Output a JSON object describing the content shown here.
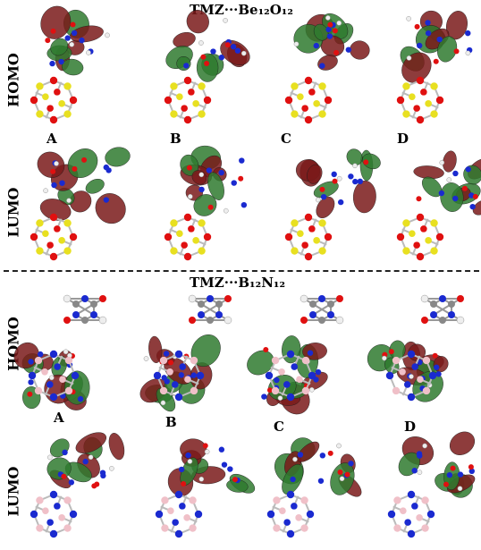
{
  "titles": {
    "top": "TMZ···Be₁₂O₁₂",
    "bottom": "TMZ···B₁₂N₁₂"
  },
  "row_labels": {
    "homo_top": "HOMO",
    "lumo_top": "LUMO",
    "homo_bottom": "HOMO",
    "lumo_bottom": "LUMO"
  },
  "panel_labels": {
    "top": [
      "A",
      "B",
      "C",
      "D"
    ],
    "bottom": [
      "A",
      "B",
      "C",
      "D"
    ]
  },
  "colors": {
    "orbital_positive": "#7a1a1a",
    "orbital_negative": "#2f7a2f",
    "oxygen": "#e01010",
    "beryllium": "#e8e020",
    "boron": "#f0c0c8",
    "nitrogen": "#1a2ad0",
    "carbon": "#888888",
    "hydrogen": "#eeeeee"
  }
}
